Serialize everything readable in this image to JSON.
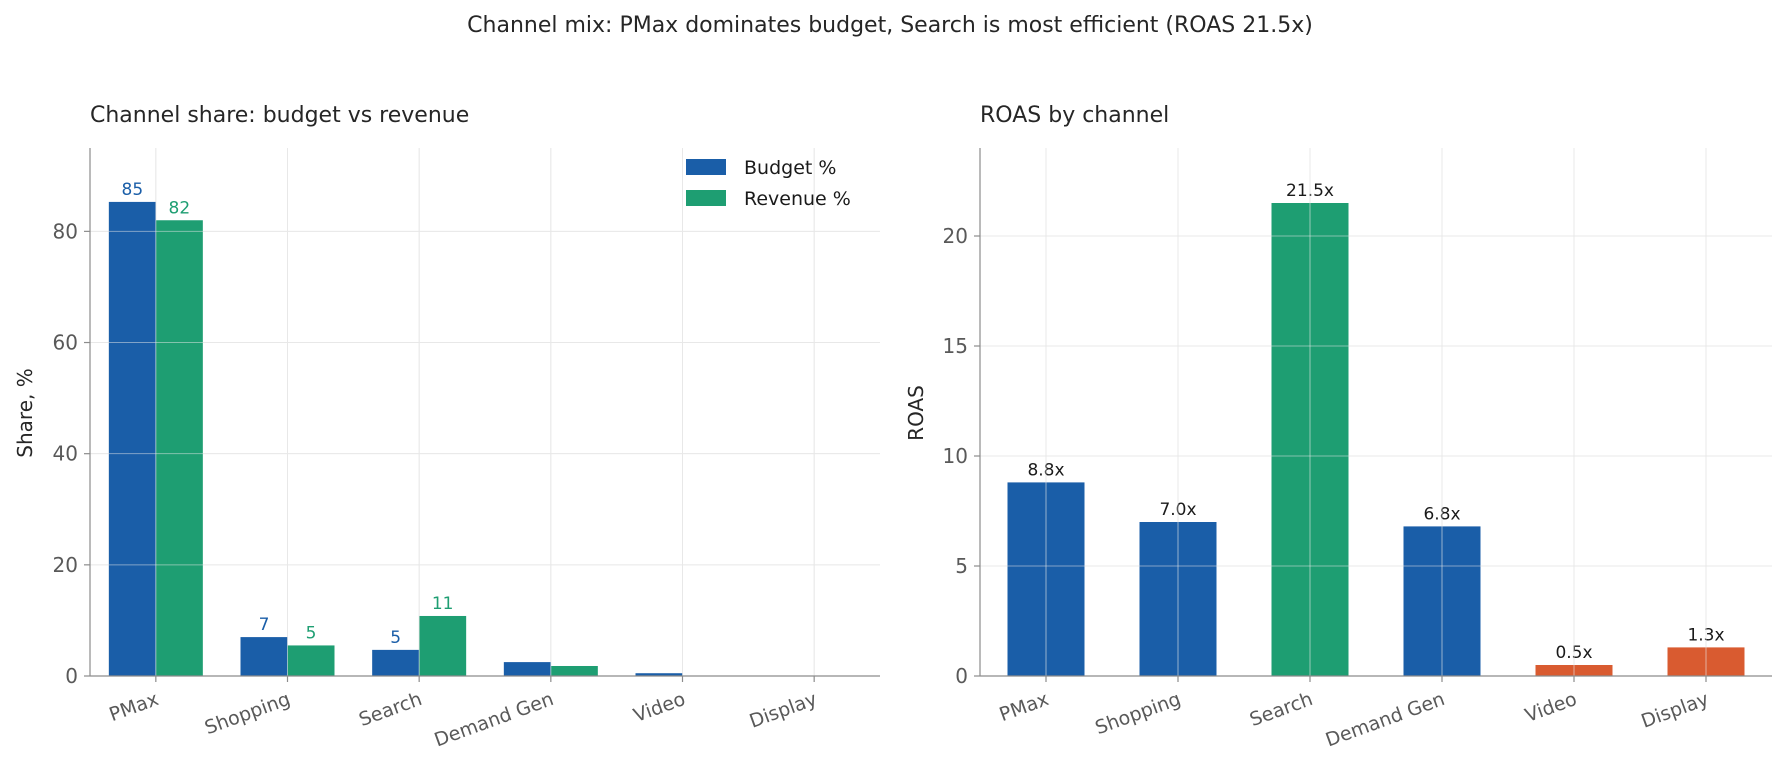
{
  "figure": {
    "suptitle": "Channel mix: PMax dominates budget, Search is most efficient (ROAS 21.5x)"
  },
  "chart_data": [
    {
      "type": "bar",
      "title": "Channel share: budget vs revenue",
      "xlabel": "",
      "ylabel": "Share, %",
      "categories": [
        "PMax",
        "Shopping",
        "Search",
        "Demand Gen",
        "Video",
        "Display"
      ],
      "ylim": [
        0,
        95
      ],
      "yticks": [
        0,
        20,
        40,
        60,
        80
      ],
      "grid": true,
      "legend": "top-right",
      "series": [
        {
          "name": "Budget %",
          "color": "#1a5ea8",
          "values": [
            85.3,
            7.0,
            4.7,
            2.5,
            0.5,
            0.0
          ],
          "labels": [
            "85",
            "7",
            "5",
            "",
            "",
            ""
          ]
        },
        {
          "name": "Revenue %",
          "color": "#1e9e72",
          "values": [
            82.0,
            5.5,
            10.8,
            1.8,
            0.0,
            0.0
          ],
          "labels": [
            "82",
            "5",
            "11",
            "",
            "",
            ""
          ]
        }
      ]
    },
    {
      "type": "bar",
      "title": "ROAS by channel",
      "xlabel": "",
      "ylabel": "ROAS",
      "categories": [
        "PMax",
        "Shopping",
        "Search",
        "Demand Gen",
        "Video",
        "Display"
      ],
      "ylim": [
        0,
        24
      ],
      "yticks": [
        0,
        5,
        10,
        15,
        20
      ],
      "grid": true,
      "values": [
        8.8,
        7.0,
        21.5,
        6.8,
        0.5,
        1.3
      ],
      "labels": [
        "8.8x",
        "7.0x",
        "21.5x",
        "6.8x",
        "0.5x",
        "1.3x"
      ],
      "colors": [
        "#1a5ea8",
        "#1a5ea8",
        "#1e9e72",
        "#1a5ea8",
        "#d95b30",
        "#d95b30"
      ]
    }
  ]
}
